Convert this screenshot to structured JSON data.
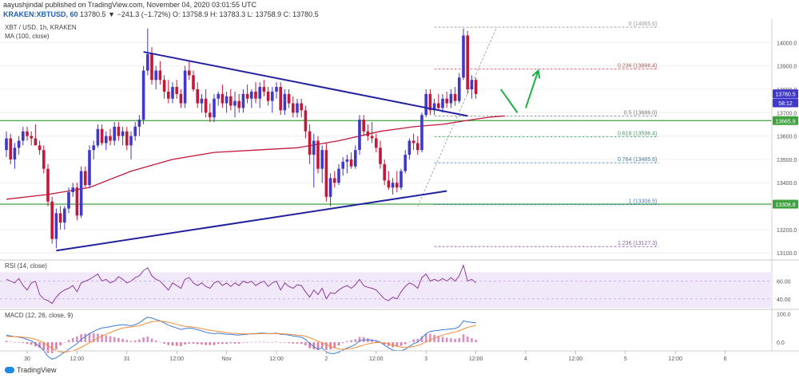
{
  "header": {
    "published": "aayushjindal published on TradingView.com, November 04, 2020 03:01:55 UTC",
    "symbol_line": "KRAKEN:XBTUSD, 60",
    "ohlc": "13780.5  ▼ −241.3 (−1.72%)  O: 13758.9  H: 13783.3  L: 13758.9  C: 13780.5"
  },
  "panes": {
    "price": {
      "line1": "XBT / USD, 1h, KRAKEN",
      "line2": "MA (100, close)"
    },
    "rsi": {
      "label": "RSI (14, close)"
    },
    "macd": {
      "label": "MACD (12, 26, close, 9)"
    }
  },
  "branding": {
    "logo_text": "TradingView"
  },
  "colors": {
    "bull": "#3f38c9",
    "bear": "#c2183a",
    "ma": "#c2183a",
    "trendline": "#23229e",
    "hline": "#3fa23f",
    "arrow": "#1bb044",
    "rsi_line": "#8e3a9b",
    "rsi_bg": "#f1e8f9",
    "macd_line": "#3a7bd5",
    "signal_line": "#f28b3a"
  },
  "chart_data": {
    "type": "candlestick",
    "price_axis": {
      "ylim": [
        13070,
        14100
      ],
      "ticks": [
        13100,
        13200,
        13300,
        13400,
        13500,
        13600,
        13700,
        13800,
        13900,
        14000
      ]
    },
    "x_ticks": [
      {
        "label": "30",
        "bar": 5
      },
      {
        "label": "12:00",
        "bar": 17
      },
      {
        "label": "31",
        "bar": 29
      },
      {
        "label": "12:00",
        "bar": 41
      },
      {
        "label": "Nov",
        "bar": 53
      },
      {
        "label": "12:00",
        "bar": 65
      },
      {
        "label": "2",
        "bar": 77
      },
      {
        "label": "12:00",
        "bar": 89
      },
      {
        "label": "3",
        "bar": 101
      },
      {
        "label": "12:00",
        "bar": 113
      },
      {
        "label": "4",
        "bar": 125
      },
      {
        "label": "12:00",
        "bar": 137
      },
      {
        "label": "5",
        "bar": 149
      },
      {
        "label": "12:00",
        "bar": 161
      },
      {
        "label": "6",
        "bar": 173
      },
      {
        "label": "12:00",
        "bar": 185
      }
    ],
    "candles": [
      [
        13540,
        13620,
        13510,
        13590
      ],
      [
        13590,
        13610,
        13480,
        13500
      ],
      [
        13500,
        13570,
        13460,
        13550
      ],
      [
        13550,
        13600,
        13520,
        13580
      ],
      [
        13580,
        13640,
        13560,
        13620
      ],
      [
        13620,
        13640,
        13580,
        13600
      ],
      [
        13600,
        13620,
        13560,
        13590
      ],
      [
        13590,
        13650,
        13560,
        13560
      ],
      [
        13560,
        13580,
        13520,
        13540
      ],
      [
        13540,
        13560,
        13440,
        13460
      ],
      [
        13460,
        13480,
        13300,
        13320
      ],
      [
        13320,
        13340,
        13140,
        13160
      ],
      [
        13160,
        13290,
        13120,
        13270
      ],
      [
        13270,
        13300,
        13200,
        13230
      ],
      [
        13230,
        13300,
        13200,
        13290
      ],
      [
        13290,
        13380,
        13270,
        13360
      ],
      [
        13360,
        13400,
        13340,
        13380
      ],
      [
        13380,
        13400,
        13240,
        13260
      ],
      [
        13260,
        13470,
        13250,
        13450
      ],
      [
        13450,
        13470,
        13380,
        13390
      ],
      [
        13390,
        13560,
        13380,
        13540
      ],
      [
        13540,
        13580,
        13500,
        13560
      ],
      [
        13560,
        13650,
        13550,
        13630
      ],
      [
        13630,
        13650,
        13560,
        13570
      ],
      [
        13570,
        13620,
        13540,
        13600
      ],
      [
        13600,
        13630,
        13560,
        13580
      ],
      [
        13580,
        13660,
        13560,
        13640
      ],
      [
        13640,
        13660,
        13580,
        13600
      ],
      [
        13600,
        13640,
        13560,
        13620
      ],
      [
        13620,
        13640,
        13540,
        13560
      ],
      [
        13560,
        13620,
        13500,
        13600
      ],
      [
        13600,
        13660,
        13580,
        13640
      ],
      [
        13640,
        13690,
        13600,
        13670
      ],
      [
        13670,
        13900,
        13650,
        13880
      ],
      [
        13880,
        14060,
        13860,
        13950
      ],
      [
        13950,
        13980,
        13820,
        13840
      ],
      [
        13840,
        13900,
        13800,
        13880
      ],
      [
        13880,
        13920,
        13820,
        13840
      ],
      [
        13840,
        13860,
        13760,
        13790
      ],
      [
        13790,
        13840,
        13740,
        13760
      ],
      [
        13760,
        13830,
        13740,
        13810
      ],
      [
        13810,
        13840,
        13760,
        13780
      ],
      [
        13780,
        13800,
        13720,
        13740
      ],
      [
        13740,
        13900,
        13720,
        13880
      ],
      [
        13880,
        13920,
        13840,
        13860
      ],
      [
        13860,
        13880,
        13790,
        13800
      ],
      [
        13800,
        13830,
        13720,
        13740
      ],
      [
        13740,
        13780,
        13700,
        13760
      ],
      [
        13760,
        13800,
        13680,
        13700
      ],
      [
        13700,
        13740,
        13660,
        13680
      ],
      [
        13680,
        13780,
        13660,
        13760
      ],
      [
        13760,
        13790,
        13730,
        13780
      ],
      [
        13780,
        13820,
        13720,
        13740
      ],
      [
        13740,
        13790,
        13700,
        13770
      ],
      [
        13770,
        13800,
        13710,
        13730
      ],
      [
        13730,
        13790,
        13680,
        13750
      ],
      [
        13750,
        13780,
        13700,
        13720
      ],
      [
        13720,
        13800,
        13700,
        13780
      ],
      [
        13780,
        13820,
        13740,
        13760
      ],
      [
        13760,
        13800,
        13720,
        13790
      ],
      [
        13790,
        13830,
        13740,
        13760
      ],
      [
        13760,
        13830,
        13720,
        13810
      ],
      [
        13810,
        13840,
        13770,
        13790
      ],
      [
        13790,
        13810,
        13730,
        13750
      ],
      [
        13750,
        13810,
        13700,
        13790
      ],
      [
        13790,
        13830,
        13760,
        13810
      ],
      [
        13810,
        13830,
        13690,
        13710
      ],
      [
        13710,
        13800,
        13690,
        13780
      ],
      [
        13780,
        13800,
        13720,
        13740
      ],
      [
        13740,
        13770,
        13680,
        13700
      ],
      [
        13700,
        13760,
        13680,
        13740
      ],
      [
        13740,
        13760,
        13680,
        13710
      ],
      [
        13710,
        13730,
        13590,
        13620
      ],
      [
        13620,
        13650,
        13480,
        13520
      ],
      [
        13520,
        13610,
        13380,
        13580
      ],
      [
        13580,
        13600,
        13440,
        13460
      ],
      [
        13460,
        13560,
        13400,
        13540
      ],
      [
        13540,
        13570,
        13320,
        13340
      ],
      [
        13340,
        13440,
        13300,
        13420
      ],
      [
        13420,
        13450,
        13380,
        13400
      ],
      [
        13400,
        13480,
        13390,
        13460
      ],
      [
        13460,
        13510,
        13430,
        13490
      ],
      [
        13490,
        13520,
        13440,
        13500
      ],
      [
        13500,
        13530,
        13460,
        13470
      ],
      [
        13470,
        13560,
        13460,
        13540
      ],
      [
        13540,
        13690,
        13520,
        13670
      ],
      [
        13670,
        13690,
        13600,
        13620
      ],
      [
        13620,
        13650,
        13580,
        13600
      ],
      [
        13600,
        13660,
        13570,
        13590
      ],
      [
        13590,
        13610,
        13530,
        13550
      ],
      [
        13550,
        13580,
        13460,
        13480
      ],
      [
        13480,
        13500,
        13390,
        13410
      ],
      [
        13410,
        13450,
        13370,
        13380
      ],
      [
        13380,
        13420,
        13350,
        13400
      ],
      [
        13400,
        13450,
        13360,
        13380
      ],
      [
        13380,
        13460,
        13370,
        13450
      ],
      [
        13450,
        13540,
        13440,
        13520
      ],
      [
        13520,
        13590,
        13500,
        13580
      ],
      [
        13580,
        13610,
        13540,
        13570
      ],
      [
        13570,
        13600,
        13520,
        13540
      ],
      [
        13540,
        13700,
        13530,
        13690
      ],
      [
        13690,
        13800,
        13680,
        13780
      ],
      [
        13780,
        13800,
        13690,
        13710
      ],
      [
        13710,
        13760,
        13690,
        13740
      ],
      [
        13740,
        13780,
        13710,
        13720
      ],
      [
        13720,
        13780,
        13700,
        13760
      ],
      [
        13760,
        13790,
        13720,
        13740
      ],
      [
        13740,
        13800,
        13720,
        13780
      ],
      [
        13780,
        13810,
        13730,
        13750
      ],
      [
        13750,
        13870,
        13740,
        13850
      ],
      [
        13850,
        14060,
        13840,
        14030
      ],
      [
        14030,
        14050,
        13780,
        13800
      ],
      [
        13800,
        13860,
        13760,
        13840
      ],
      [
        13840,
        13850,
        13760,
        13780
      ]
    ],
    "ma_100": [
      [
        0,
        13330
      ],
      [
        10,
        13350
      ],
      [
        20,
        13380
      ],
      [
        30,
        13450
      ],
      [
        40,
        13500
      ],
      [
        50,
        13530
      ],
      [
        60,
        13540
      ],
      [
        70,
        13550
      ],
      [
        80,
        13580
      ],
      [
        90,
        13620
      ],
      [
        98,
        13640
      ],
      [
        105,
        13650
      ],
      [
        112,
        13670
      ],
      [
        116,
        13680
      ],
      [
        119,
        13685
      ],
      [
        120,
        13686
      ]
    ],
    "trendlines": [
      {
        "from": [
          33,
          13960
        ],
        "to": [
          111,
          13686
        ]
      },
      {
        "from": [
          12,
          13110
        ],
        "to": [
          106,
          13365
        ]
      }
    ],
    "horizontal_levels": [
      13665.9,
      13308.8
    ],
    "fibonacci": [
      {
        "label": "0 (14065.6)",
        "price": 14065.6
      },
      {
        "label": "0.236 (13886.4)",
        "price": 13886.4
      },
      {
        "label": "0.5 (13686.0)",
        "price": 13686.0
      },
      {
        "label": "0.618 (13596.4)",
        "price": 13596.4
      },
      {
        "label": "0.764 (13485.6)",
        "price": 13485.6
      },
      {
        "label": "1 (13306.5)",
        "price": 13306.5
      },
      {
        "label": "1.236 (13127.3)",
        "price": 13127.3
      }
    ],
    "price_badges": [
      {
        "text": "13780.5",
        "price": 13780.5,
        "color": "#3f38c9"
      },
      {
        "text": "58:12",
        "price": 13742,
        "color": "#3f38c9"
      },
      {
        "text": "13665.9",
        "price": 13665.9,
        "color": "#3fa23f"
      },
      {
        "text": "13308.8",
        "price": 13308.8,
        "color": "#3fa23f"
      }
    ],
    "projection_arrows": [
      {
        "from": [
          119,
          13800
        ],
        "to": [
          123,
          13700
        ]
      },
      {
        "from": [
          125,
          13720
        ],
        "to": [
          128,
          13880
        ]
      }
    ],
    "rsi": {
      "ylim": [
        30,
        82
      ],
      "ticks": [
        40,
        60
      ],
      "band": [
        30,
        70
      ],
      "values": [
        62,
        60,
        58,
        63,
        55,
        50,
        58,
        60,
        45,
        40,
        38,
        35,
        42,
        47,
        50,
        52,
        55,
        48,
        58,
        60,
        62,
        65,
        68,
        60,
        62,
        58,
        60,
        65,
        62,
        58,
        60,
        64,
        66,
        72,
        75,
        66,
        62,
        60,
        55,
        50,
        58,
        55,
        52,
        62,
        64,
        58,
        55,
        58,
        54,
        52,
        58,
        60,
        55,
        58,
        54,
        58,
        55,
        60,
        58,
        60,
        55,
        58,
        60,
        54,
        58,
        60,
        50,
        58,
        54,
        52,
        56,
        55,
        48,
        42,
        50,
        45,
        52,
        40,
        47,
        46,
        50,
        53,
        55,
        52,
        56,
        62,
        55,
        53,
        52,
        50,
        45,
        40,
        38,
        42,
        40,
        48,
        54,
        58,
        56,
        52,
        64,
        68,
        60,
        62,
        60,
        63,
        60,
        64,
        60,
        66,
        78,
        60,
        62,
        58
      ]
    },
    "macd": {
      "ylim": [
        -25,
        110
      ],
      "ticks": [
        100,
        0
      ],
      "macd": [
        25,
        22,
        20,
        18,
        15,
        10,
        5,
        -5,
        -15,
        -30,
        -50,
        -60,
        -55,
        -45,
        -35,
        -25,
        -15,
        -5,
        10,
        20,
        30,
        38,
        45,
        50,
        52,
        55,
        58,
        60,
        62,
        60,
        58,
        62,
        68,
        80,
        88,
        85,
        80,
        75,
        68,
        60,
        55,
        50,
        45,
        48,
        50,
        48,
        44,
        40,
        35,
        32,
        30,
        32,
        30,
        28,
        28,
        26,
        25,
        27,
        28,
        30,
        30,
        32,
        32,
        30,
        30,
        32,
        28,
        28,
        25,
        22,
        20,
        18,
        10,
        -5,
        -15,
        -25,
        -20,
        -35,
        -40,
        -40,
        -35,
        -28,
        -20,
        -15,
        -8,
        5,
        8,
        8,
        7,
        5,
        0,
        -10,
        -20,
        -28,
        -30,
        -30,
        -25,
        -15,
        -5,
        0,
        15,
        30,
        38,
        40,
        42,
        44,
        45,
        47,
        48,
        55,
        75,
        72,
        70,
        68
      ],
      "signal": [
        20,
        20,
        20,
        19,
        18,
        16,
        14,
        10,
        5,
        -2,
        -12,
        -22,
        -30,
        -34,
        -35,
        -33,
        -30,
        -25,
        -18,
        -10,
        -2,
        6,
        15,
        22,
        28,
        34,
        40,
        45,
        50,
        52,
        54,
        56,
        58,
        63,
        68,
        72,
        74,
        74,
        73,
        70,
        67,
        63,
        59,
        56,
        55,
        53,
        51,
        48,
        45,
        42,
        40,
        38,
        36,
        34,
        32,
        31,
        30,
        29,
        29,
        29,
        29,
        30,
        30,
        30,
        30,
        30,
        30,
        29,
        28,
        27,
        25,
        24,
        21,
        16,
        10,
        3,
        -2,
        -8,
        -15,
        -20,
        -24,
        -25,
        -24,
        -22,
        -19,
        -14,
        -10,
        -6,
        -3,
        -1,
        -1,
        -3,
        -6,
        -10,
        -14,
        -17,
        -18,
        -17,
        -15,
        -12,
        -6,
        1,
        8,
        14,
        20,
        25,
        29,
        33,
        36,
        40,
        47,
        52,
        56,
        59
      ]
    }
  }
}
